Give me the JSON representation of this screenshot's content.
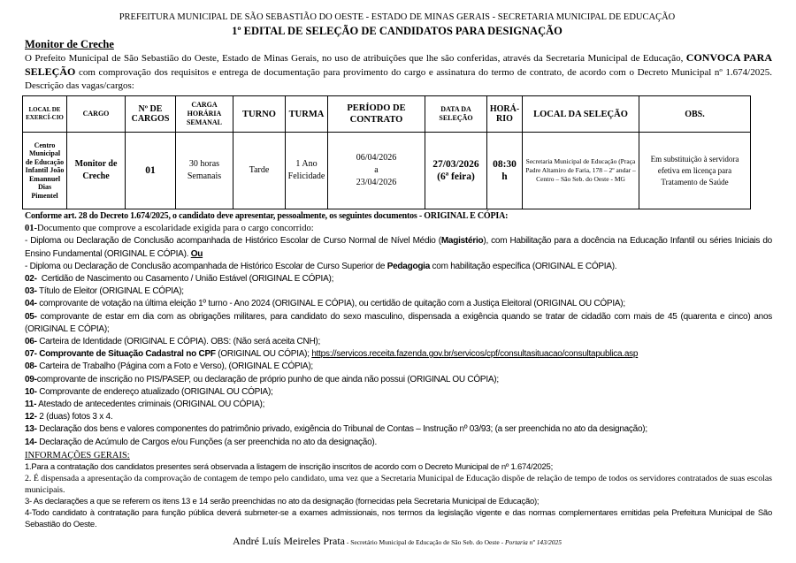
{
  "header": {
    "line1": "PREFEITURA MUNICIPAL DE SÃO SEBASTIÃO DO OESTE - ESTADO DE MINAS GERAIS - SECRETARIA MUNICIPAL DE EDUCAÇÃO",
    "title": "1º EDITAL DE SELEÇÃO DE CANDIDATOS PARA DESIGNAÇÃO",
    "subtitle": "Monitor de Creche"
  },
  "intro": {
    "part1": "O Prefeito Municipal de São Sebastião do Oeste, Estado de Minas Gerais, no uso de atribuições que lhe são conferidas, através da Secretaria Municipal de Educação, ",
    "bold": "CONVOCA PARA SELEÇÃO",
    "part2": " com comprovação dos requisitos e entrega de documentação para provimento do cargo e assinatura do termo de contrato, de acordo com o Decreto Municipal nº 1.674/2025. Descrição das vagas/cargos:"
  },
  "table": {
    "headers": [
      "LOCAL DE EXERCÍ-CIO",
      "CARGO",
      "Nº DE CARGOS",
      "CARGA HORÁRIA SEMANAL",
      "TURNO",
      "TURMA",
      "PERÍODO DE CONTRATO",
      "DATA DA SELEÇÃO",
      "HORÁ-RIO",
      "LOCAL DA SELEÇÃO",
      "OBS."
    ],
    "row": {
      "local": "Centro Municipal de Educação Infantil João Emannuel Dias Pimentel",
      "cargo": "Monitor de Creche",
      "numero": "01",
      "carga": "30 horas Semanais",
      "turno": "Tarde",
      "turma": "1 Ano Felicidade",
      "periodo_inicio": "06/04/2026",
      "periodo_sep": "a",
      "periodo_fim": "23/04/2026",
      "data": "27/03/2026",
      "data_dia": "(6ª feira)",
      "horario": "08:30 h",
      "local_selecao": "Secretaria Municipal de Educação (Praça Padre Altamiro de Faria, 178 – 2º andar – Centro – São Seb. do Oeste - MG",
      "obs": "Em substituição à servidora efetiva em licença para Tratamento de Saúde"
    }
  },
  "documents": {
    "intro": "Conforme art. 28 do Decreto 1.674/2025, o candidato deve apresentar, pessoalmente, os seguintes documentos - ORIGINAL E CÓPIA:",
    "item01": {
      "num": "01-",
      "text": "Documento que comprove a escolaridade exigida para o cargo concorrido:"
    },
    "item01a": {
      "pre": "- Diploma ou Declaração de Conclusão acompanhada de Histórico Escolar de Curso Normal de Nível Médio (",
      "bold": "Magistério",
      "post": "), com Habilitação para a docência na Educação Infantil ou séries Iniciais do Ensino Fundamental (ORIGINAL E CÓPIA). ",
      "ou": "Ou"
    },
    "item01b": {
      "pre": "- Diploma ou Declaração de Conclusão acompanhada de Histórico Escolar de Curso Superior de ",
      "bold": "Pedagogia",
      "post": " com habilitação específica (ORIGINAL E CÓPIA)."
    },
    "items": [
      {
        "num": "02-",
        "text": "  Certidão de Nascimento ou Casamento / União Estável (ORIGINAL E CÓPIA);"
      },
      {
        "num": "03-",
        "text": " Título de Eleitor (ORIGINAL E CÓPIA);"
      },
      {
        "num": "04-",
        "text": " comprovante de votação na última eleição  1º turno - Ano 2024 (ORIGINAL E CÓPIA), ou certidão de quitação com a Justiça Eleitoral (ORIGINAL OU CÓPIA);"
      },
      {
        "num": "05-",
        "text": " comprovante de estar em dia com as obrigações militares, para candidato do sexo masculino, dispensada a exigência quando se tratar de cidadão com mais de 45 (quarenta e cinco) anos (ORIGINAL E CÓPIA);"
      },
      {
        "num": "06-",
        "text": " Carteira de Identidade (ORIGINAL E CÓPIA). OBS: (Não será aceita CNH);"
      }
    ],
    "item07": {
      "num": "07-",
      "bold": " Comprovante de Situação Cadastral no CPF",
      "text": " (ORIGINAL  OU CÓPIA); ",
      "link": "https://servicos.receita.fazenda.gov.br/servicos/cpf/consultasituacao/consultapublica.asp"
    },
    "items2": [
      {
        "num": "08-",
        "text": " Carteira de Trabalho (Página com a Foto e Verso), (ORIGINAL E CÓPIA);"
      },
      {
        "num": "09-",
        "text": "comprovante de inscrição no PIS/PASEP, ou declaração de próprio punho de que ainda não possui (ORIGINAL OU CÓPIA);"
      },
      {
        "num": "10-",
        "text": " Comprovante de endereço atualizado (ORIGINAL OU CÓPIA);"
      },
      {
        "num": "11-",
        "text": " Atestado de antecedentes criminais (ORIGINAL OU CÓPIA);"
      },
      {
        "num": "12-",
        "text": " 2 (duas) fotos 3 x 4."
      },
      {
        "num": "13-",
        "text": " Declaração dos bens e valores componentes do patrimônio privado, exigência do Tribunal de Contas – Instrução nº 03/93; (a ser preenchida no ato da designação);"
      },
      {
        "num": "14-",
        "text": " Declaração de Acúmulo de Cargos e/ou Funções (a ser preenchida no ato da designação)."
      }
    ]
  },
  "info": {
    "title": "INFORMAÇÕES GERAIS:",
    "items": [
      "1.Para a contratação dos candidatos presentes será observada a listagem de inscrição inscritos de acordo com o Decreto Municipal de nº  1.674/2025;",
      "2. É dispensada a apresentação da comprovação de contagem de tempo pelo candidato, uma vez que a Secretaria Municipal de Educação dispõe de relação de tempo de todos os servidores contratados de suas escolas municipais.",
      "3- As declarações a que se referem os itens 13 e 14 serão preenchidas no ato da designação (fornecidas pela Secretaria Municipal de Educação);",
      "4-Todo candidato à contratação para função pública deverá submeter-se a exames admissionais, nos termos da legislação vigente e das normas complementares emitidas pela Prefeitura Municipal de São Sebastião do Oeste."
    ]
  },
  "signature": {
    "name": "André Luís Meireles Prata",
    "role": " - Secretário Municipal de Educação de São Seb. do Oeste - ",
    "portaria": "Portaria nº 143/2025"
  }
}
